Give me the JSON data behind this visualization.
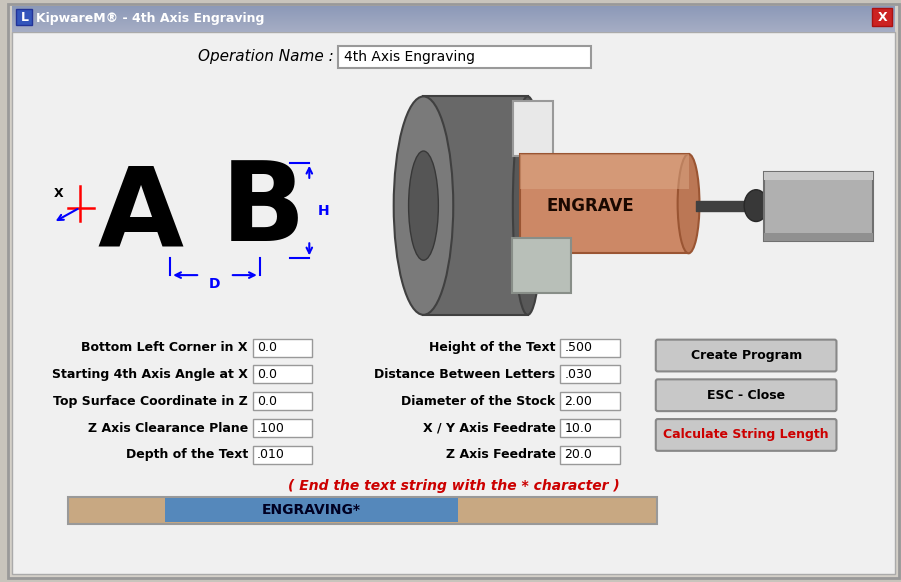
{
  "title_bar": "KipwareM® - 4th Axis Engraving",
  "window_bg": "#f0f0f0",
  "op_name_label": "Operation Name :",
  "op_name_value": "4th Axis Engraving",
  "left_fields": [
    {
      "label": "Bottom Left Corner in X",
      "value": "0.0"
    },
    {
      "label": "Starting 4th Axis Angle at X",
      "value": "0.0"
    },
    {
      "label": "Top Surface Coordinate in Z",
      "value": "0.0"
    },
    {
      "label": "Z Axis Clearance Plane",
      "value": ".100"
    },
    {
      "label": "Depth of the Text",
      "value": ".010"
    }
  ],
  "right_fields": [
    {
      "label": "Height of the Text",
      "value": ".500"
    },
    {
      "label": "Distance Between Letters",
      "value": ".030"
    },
    {
      "label": "Diameter of the Stock",
      "value": "2.00"
    },
    {
      "label": "X / Y Axis Feedrate",
      "value": "10.0"
    },
    {
      "label": "Z Axis Feedrate",
      "value": "20.0"
    }
  ],
  "buttons": [
    {
      "label": "Create Program",
      "text_color": "#000000"
    },
    {
      "label": "ESC - Close",
      "text_color": "#000000"
    },
    {
      "label": "Calculate String Length",
      "text_color": "#cc0000"
    }
  ],
  "note_text": "( End the text string with the * character )",
  "input_text": "ENGRAVING*",
  "input_bg": "#c8a882",
  "input_text_color": "#0044aa"
}
